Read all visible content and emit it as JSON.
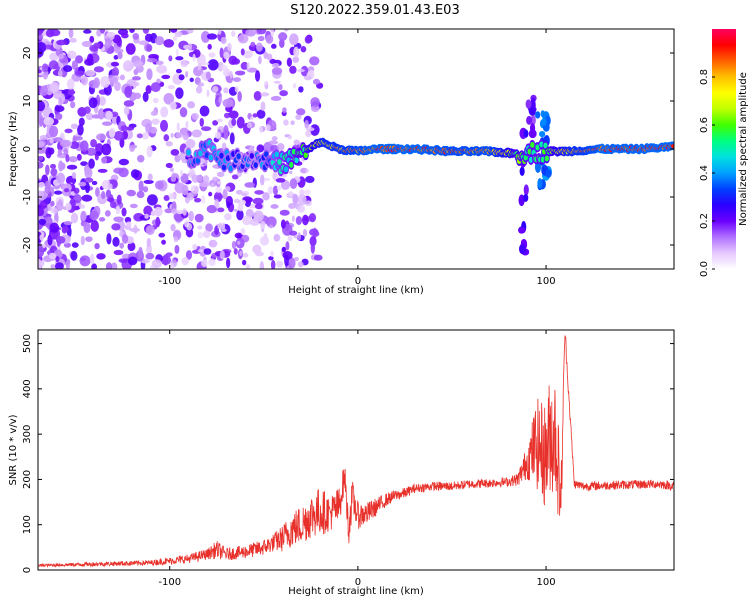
{
  "title": "S120.2022.359.01.43.E03",
  "chart_data": [
    {
      "type": "heatmap",
      "xlabel": "Height of straight line (km)",
      "ylabel": "Frequency (Hz)",
      "xlim": [
        -170,
        168
      ],
      "ylim": [
        -25,
        25
      ],
      "xticks": [
        -100,
        0,
        100
      ],
      "yticks": [
        -20,
        -10,
        0,
        10,
        20
      ],
      "colorbar": {
        "label": "Normalized spectral amplitude",
        "range": [
          0,
          1
        ],
        "ticks": [
          0.0,
          0.2,
          0.4,
          0.6,
          0.8
        ],
        "colormap": [
          "#ffffff",
          "#e5c8ff",
          "#b070ff",
          "#6a00ff",
          "#2a00ff",
          "#0040ff",
          "#00a0ff",
          "#00e0e0",
          "#00ff80",
          "#40ff00",
          "#c0ff00",
          "#ffff00",
          "#ffc000",
          "#ff6000",
          "#ff0000",
          "#ff0060"
        ]
      },
      "ridge": [
        {
          "x": -90,
          "y": -2.0,
          "amp": 0.35
        },
        {
          "x": -80,
          "y": 0.5,
          "amp": 0.4
        },
        {
          "x": -70,
          "y": -2.5,
          "amp": 0.35
        },
        {
          "x": -55,
          "y": -2.0,
          "amp": 0.3
        },
        {
          "x": -40,
          "y": -3.0,
          "amp": 0.45
        },
        {
          "x": -30,
          "y": -1.0,
          "amp": 0.55
        },
        {
          "x": -20,
          "y": 1.5,
          "amp": 0.75
        },
        {
          "x": -10,
          "y": 0.0,
          "amp": 0.8
        },
        {
          "x": 0,
          "y": -0.5,
          "amp": 0.85
        },
        {
          "x": 10,
          "y": 0.0,
          "amp": 0.9
        },
        {
          "x": 30,
          "y": 0.0,
          "amp": 0.9
        },
        {
          "x": 50,
          "y": -0.5,
          "amp": 0.85
        },
        {
          "x": 70,
          "y": -0.5,
          "amp": 0.85
        },
        {
          "x": 85,
          "y": -1.0,
          "amp": 0.6
        },
        {
          "x": 95,
          "y": -0.5,
          "amp": 0.5
        },
        {
          "x": 110,
          "y": -0.5,
          "amp": 0.75
        },
        {
          "x": 130,
          "y": 0.0,
          "amp": 0.9
        },
        {
          "x": 150,
          "y": 0.0,
          "amp": 0.9
        },
        {
          "x": 168,
          "y": 0.5,
          "amp": 0.9
        }
      ]
    },
    {
      "type": "line",
      "xlabel": "Height of straight line (km)",
      "ylabel": "SNR (10 * v/v)",
      "xlim": [
        -170,
        168
      ],
      "ylim": [
        0,
        530
      ],
      "xticks": [
        -100,
        0,
        100
      ],
      "yticks": [
        0,
        100,
        200,
        300,
        400,
        500
      ],
      "series": [
        {
          "color": "#e8302a",
          "x": [
            -170,
            -150,
            -130,
            -110,
            -100,
            -90,
            -80,
            -75,
            -70,
            -60,
            -50,
            -45,
            -40,
            -35,
            -30,
            -25,
            -20,
            -15,
            -10,
            -7,
            -5,
            -3,
            0,
            5,
            10,
            15,
            20,
            25,
            30,
            40,
            50,
            60,
            70,
            80,
            85,
            90,
            95,
            100,
            102,
            105,
            108,
            110,
            115,
            120,
            140,
            160,
            168
          ],
          "y": [
            10,
            12,
            14,
            16,
            20,
            25,
            35,
            45,
            35,
            40,
            50,
            60,
            70,
            90,
            100,
            120,
            130,
            125,
            140,
            210,
            90,
            160,
            120,
            125,
            140,
            155,
            165,
            170,
            180,
            185,
            185,
            190,
            192,
            195,
            200,
            240,
            280,
            250,
            300,
            300,
            150,
            530,
            190,
            185,
            188,
            190,
            185
          ],
          "amp": [
            3,
            4,
            5,
            6,
            8,
            10,
            12,
            20,
            14,
            15,
            18,
            20,
            30,
            40,
            45,
            50,
            55,
            40,
            45,
            30,
            40,
            40,
            30,
            25,
            20,
            15,
            12,
            12,
            10,
            10,
            10,
            10,
            10,
            10,
            15,
            40,
            100,
            120,
            130,
            140,
            80,
            20,
            10,
            10,
            10,
            10,
            10
          ]
        }
      ]
    }
  ]
}
